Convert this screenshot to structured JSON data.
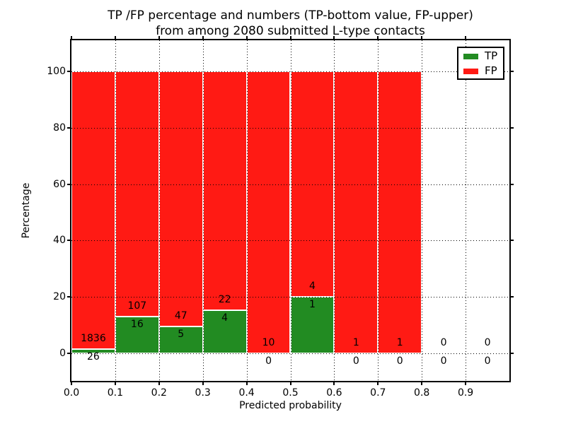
{
  "title": {
    "line1": "TP /FP percentage and numbers (TP-bottom value, FP-upper)",
    "line2": "from among 2080 submitted L-type contacts"
  },
  "axes": {
    "xlabel": "Predicted probability",
    "ylabel": "Percentage",
    "x_tick_labels": [
      "0.0",
      "0.1",
      "0.2",
      "0.3",
      "0.4",
      "0.5",
      "0.6",
      "0.7",
      "0.8",
      "0.9"
    ],
    "y_tick_labels": [
      "0",
      "20",
      "40",
      "60",
      "80",
      "100"
    ],
    "y_tick_values": [
      0,
      20,
      40,
      60,
      80,
      100
    ]
  },
  "legend": {
    "items": [
      {
        "label": "TP",
        "color": "#228b22"
      },
      {
        "label": "FP",
        "color": "#ff1a14"
      }
    ]
  },
  "colors": {
    "tp": "#228b22",
    "fp": "#ff1a14",
    "background": "#ffffff",
    "text": "#000000",
    "bar_edge": "#ffffff"
  },
  "chart_data": {
    "type": "bar",
    "stacked": true,
    "title": "TP /FP percentage and numbers (TP-bottom value, FP-upper) from among 2080 submitted L-type contacts",
    "xlabel": "Predicted probability",
    "ylabel": "Percentage",
    "xlim": [
      0.0,
      1.0
    ],
    "ylim": [
      -10,
      110
    ],
    "grid": "dotted, both axes, drawn above bars",
    "legend_position": "upper right",
    "total_contacts": 2080,
    "bin_width": 0.1,
    "categories": [
      "0.0-0.1",
      "0.1-0.2",
      "0.2-0.3",
      "0.3-0.4",
      "0.4-0.5",
      "0.5-0.6",
      "0.6-0.7",
      "0.7-0.8",
      "0.8-0.9",
      "0.9-1.0"
    ],
    "series": [
      {
        "name": "TP",
        "color": "#228b22",
        "counts": [
          26,
          16,
          5,
          4,
          0,
          1,
          0,
          0,
          0,
          0
        ]
      },
      {
        "name": "FP",
        "color": "#ff1a14",
        "counts": [
          1836,
          107,
          47,
          22,
          10,
          4,
          1,
          1,
          0,
          0
        ]
      }
    ],
    "tp_percent": [
      1.4,
      13.0,
      9.6,
      15.4,
      0.0,
      20.0,
      0.0,
      0.0,
      null,
      null
    ],
    "fp_percent": [
      98.6,
      87.0,
      90.4,
      84.6,
      100.0,
      80.0,
      100.0,
      100.0,
      null,
      null
    ],
    "bins": [
      {
        "range": "0.0-0.1",
        "tp": 26,
        "fp": 1836
      },
      {
        "range": "0.1-0.2",
        "tp": 16,
        "fp": 107
      },
      {
        "range": "0.2-0.3",
        "tp": 5,
        "fp": 47
      },
      {
        "range": "0.3-0.4",
        "tp": 4,
        "fp": 22
      },
      {
        "range": "0.4-0.5",
        "tp": 0,
        "fp": 10
      },
      {
        "range": "0.5-0.6",
        "tp": 1,
        "fp": 4
      },
      {
        "range": "0.6-0.7",
        "tp": 0,
        "fp": 1
      },
      {
        "range": "0.7-0.8",
        "tp": 0,
        "fp": 1
      },
      {
        "range": "0.8-0.9",
        "tp": 0,
        "fp": 0
      },
      {
        "range": "0.9-1.0",
        "tp": 0,
        "fp": 0
      }
    ]
  }
}
